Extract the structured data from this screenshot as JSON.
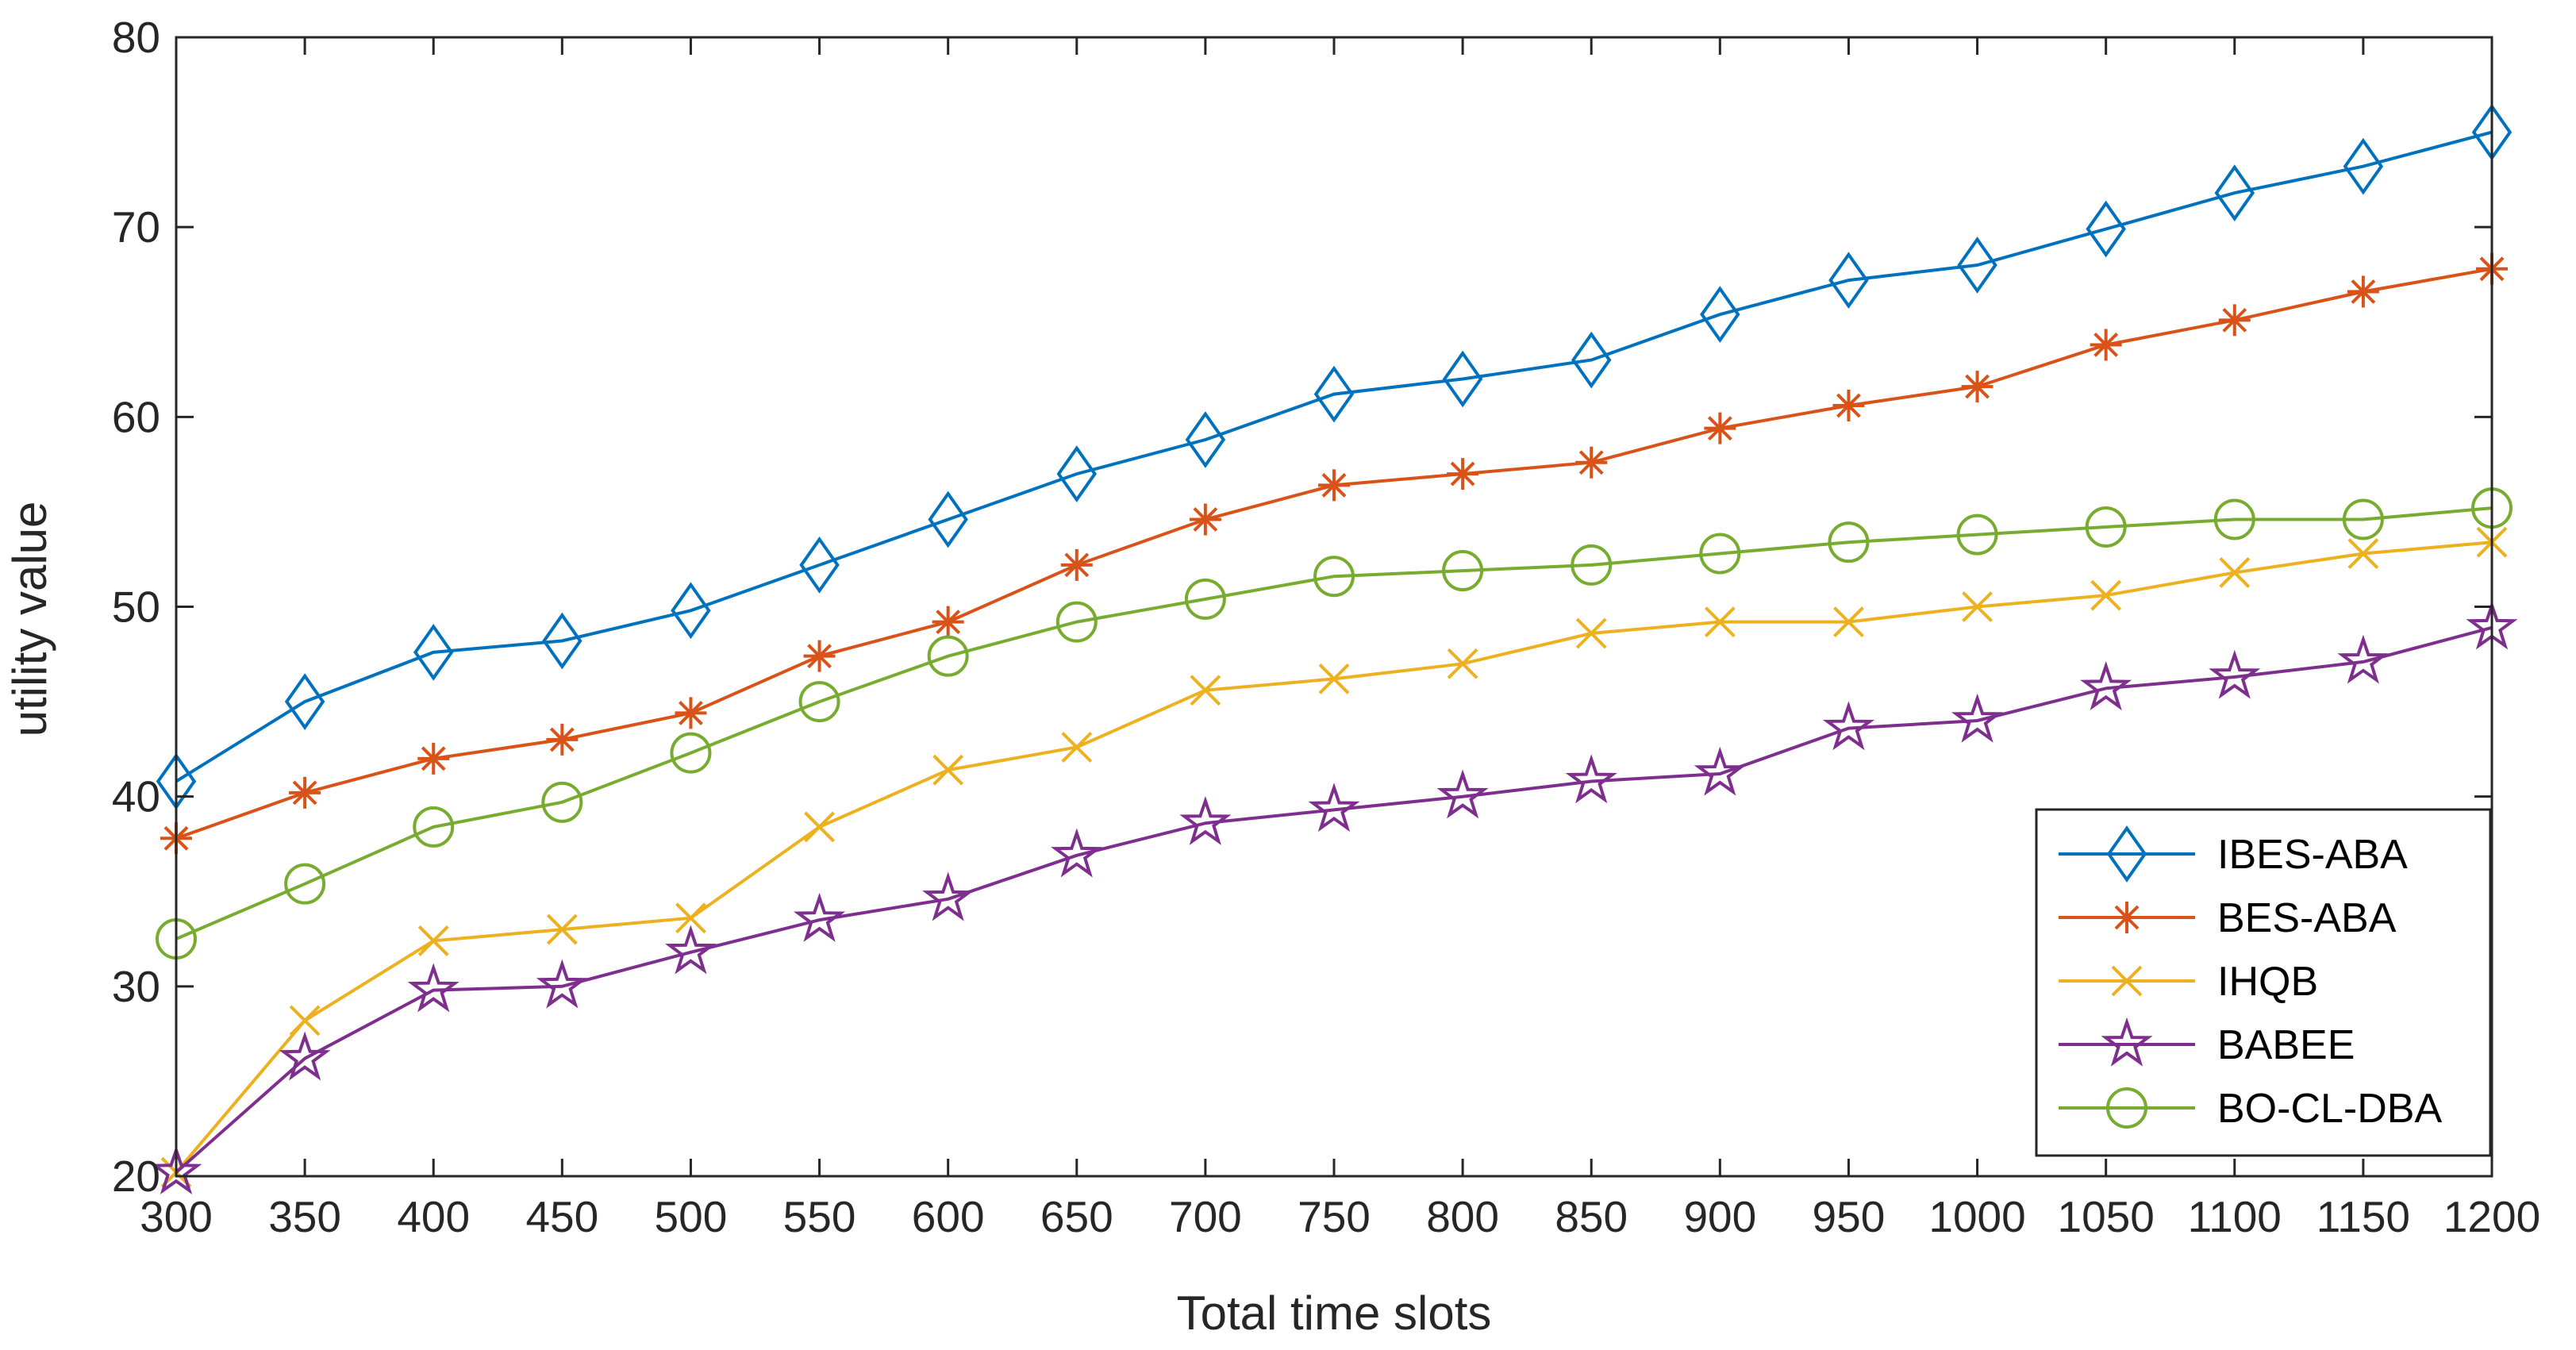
{
  "chart_data": {
    "type": "line",
    "title": "",
    "xlabel": "Total time slots",
    "ylabel": "utility value",
    "x": [
      300,
      350,
      400,
      450,
      500,
      550,
      600,
      650,
      700,
      750,
      800,
      850,
      900,
      950,
      1000,
      1050,
      1100,
      1150,
      1200
    ],
    "x_tick_labels": [
      "300",
      "350",
      "400",
      "450",
      "500",
      "550",
      "600",
      "650",
      "700",
      "750",
      "800",
      "850",
      "900",
      "950",
      "1000",
      "1050",
      "1100",
      "1150",
      "1200"
    ],
    "xlim": [
      300,
      1200
    ],
    "ylim": [
      20,
      80
    ],
    "y_ticks": [
      20,
      30,
      40,
      50,
      60,
      70,
      80
    ],
    "y_tick_labels": [
      "20",
      "30",
      "40",
      "50",
      "60",
      "70",
      "80"
    ],
    "grid": false,
    "legend_position": "bottom-right",
    "series": [
      {
        "name": "IBES-ABA",
        "color": "#0072BD",
        "marker": "diamond",
        "values": [
          40.8,
          45.0,
          47.6,
          48.2,
          49.8,
          52.2,
          54.6,
          57.0,
          58.8,
          61.2,
          62.0,
          63.0,
          65.4,
          67.2,
          68.0,
          69.9,
          71.8,
          73.2,
          75.0
        ]
      },
      {
        "name": "BES-ABA",
        "color": "#D95319",
        "marker": "asterisk",
        "values": [
          37.8,
          40.2,
          42.0,
          43.0,
          44.4,
          47.4,
          49.2,
          52.2,
          54.6,
          56.4,
          57.0,
          57.6,
          59.4,
          60.6,
          61.6,
          63.8,
          65.1,
          66.6,
          67.8
        ]
      },
      {
        "name": "IHQB",
        "color": "#EDB120",
        "marker": "x",
        "values": [
          20.2,
          28.2,
          32.4,
          33.0,
          33.6,
          38.4,
          41.4,
          42.6,
          45.6,
          46.2,
          47.0,
          48.6,
          49.2,
          49.2,
          50.0,
          50.6,
          51.8,
          52.8,
          53.4
        ]
      },
      {
        "name": "BABEE",
        "color": "#7E2F8E",
        "marker": "star",
        "values": [
          20.2,
          26.2,
          29.8,
          30.0,
          31.8,
          33.5,
          34.6,
          36.9,
          38.6,
          39.3,
          40.0,
          40.8,
          41.2,
          43.6,
          44.0,
          45.7,
          46.3,
          47.1,
          48.9
        ]
      },
      {
        "name": "BO-CL-DBA",
        "color": "#77AC30",
        "marker": "circle",
        "values": [
          32.5,
          35.4,
          38.4,
          39.7,
          42.3,
          45.0,
          47.4,
          49.2,
          50.4,
          51.6,
          51.9,
          52.2,
          52.8,
          53.4,
          53.8,
          54.2,
          54.6,
          54.6,
          55.2
        ]
      }
    ]
  }
}
